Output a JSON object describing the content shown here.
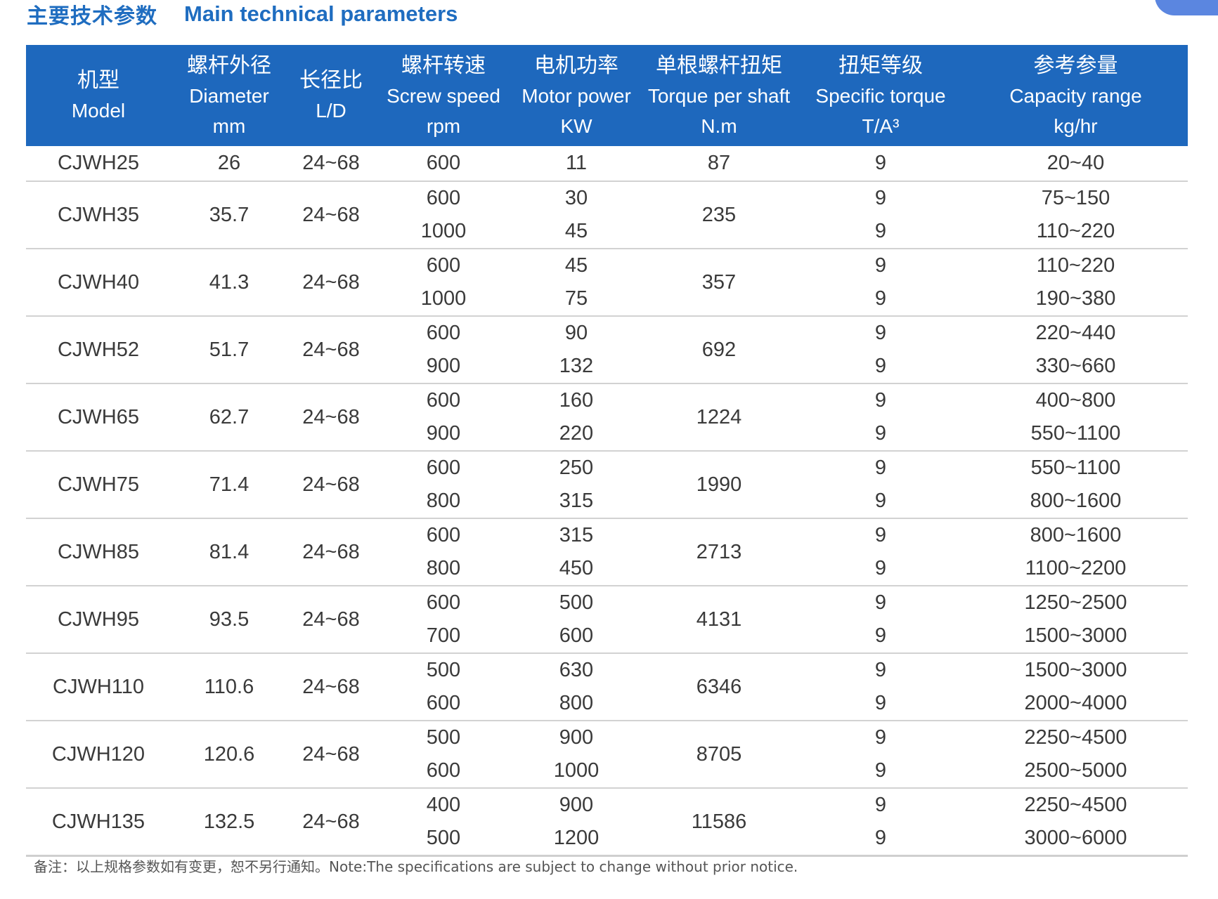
{
  "title": {
    "cn": "主要技术参数",
    "en": "Main technical parameters"
  },
  "columns": [
    {
      "cn": "机型",
      "en": "Model",
      "unit": ""
    },
    {
      "cn": "螺杆外径",
      "en": "Diameter",
      "unit": "mm"
    },
    {
      "cn": "长径比",
      "en": "L/D",
      "unit": ""
    },
    {
      "cn": "螺杆转速",
      "en": "Screw speed",
      "unit": "rpm"
    },
    {
      "cn": "电机功率",
      "en": "Motor power",
      "unit": "KW"
    },
    {
      "cn": "单根螺杆扭矩",
      "en": "Torque per shaft",
      "unit": "N.m"
    },
    {
      "cn": "扭矩等级",
      "en": "Specific torque",
      "unit": "T/A³"
    },
    {
      "cn": "参考参量",
      "en": "Capacity range",
      "unit": "kg/hr"
    }
  ],
  "models": [
    {
      "model": "CJWH25",
      "diameter": "26",
      "ld": "24~68",
      "torque": "87",
      "variants": [
        {
          "speed": "600",
          "power": "11",
          "specific": "9",
          "capacity": "20~40"
        }
      ]
    },
    {
      "model": "CJWH35",
      "diameter": "35.7",
      "ld": "24~68",
      "torque": "235",
      "variants": [
        {
          "speed": "600",
          "power": "30",
          "specific": "9",
          "capacity": "75~150"
        },
        {
          "speed": "1000",
          "power": "45",
          "specific": "9",
          "capacity": "110~220"
        }
      ]
    },
    {
      "model": "CJWH40",
      "diameter": "41.3",
      "ld": "24~68",
      "torque": "357",
      "variants": [
        {
          "speed": "600",
          "power": "45",
          "specific": "9",
          "capacity": "110~220"
        },
        {
          "speed": "1000",
          "power": "75",
          "specific": "9",
          "capacity": "190~380"
        }
      ]
    },
    {
      "model": "CJWH52",
      "diameter": "51.7",
      "ld": "24~68",
      "torque": "692",
      "variants": [
        {
          "speed": "600",
          "power": "90",
          "specific": "9",
          "capacity": "220~440"
        },
        {
          "speed": "900",
          "power": "132",
          "specific": "9",
          "capacity": "330~660"
        }
      ]
    },
    {
      "model": "CJWH65",
      "diameter": "62.7",
      "ld": "24~68",
      "torque": "1224",
      "variants": [
        {
          "speed": "600",
          "power": "160",
          "specific": "9",
          "capacity": "400~800"
        },
        {
          "speed": "900",
          "power": "220",
          "specific": "9",
          "capacity": "550~1100"
        }
      ]
    },
    {
      "model": "CJWH75",
      "diameter": "71.4",
      "ld": "24~68",
      "torque": "1990",
      "variants": [
        {
          "speed": "600",
          "power": "250",
          "specific": "9",
          "capacity": "550~1100"
        },
        {
          "speed": "800",
          "power": "315",
          "specific": "9",
          "capacity": "800~1600"
        }
      ]
    },
    {
      "model": "CJWH85",
      "diameter": "81.4",
      "ld": "24~68",
      "torque": "2713",
      "variants": [
        {
          "speed": "600",
          "power": "315",
          "specific": "9",
          "capacity": "800~1600"
        },
        {
          "speed": "800",
          "power": "450",
          "specific": "9",
          "capacity": "1100~2200"
        }
      ]
    },
    {
      "model": "CJWH95",
      "diameter": "93.5",
      "ld": "24~68",
      "torque": "4131",
      "variants": [
        {
          "speed": "600",
          "power": "500",
          "specific": "9",
          "capacity": "1250~2500"
        },
        {
          "speed": "700",
          "power": "600",
          "specific": "9",
          "capacity": "1500~3000"
        }
      ]
    },
    {
      "model": "CJWH110",
      "diameter": "110.6",
      "ld": "24~68",
      "torque": "6346",
      "variants": [
        {
          "speed": "500",
          "power": "630",
          "specific": "9",
          "capacity": "1500~3000"
        },
        {
          "speed": "600",
          "power": "800",
          "specific": "9",
          "capacity": "2000~4000"
        }
      ]
    },
    {
      "model": "CJWH120",
      "diameter": "120.6",
      "ld": "24~68",
      "torque": "8705",
      "variants": [
        {
          "speed": "500",
          "power": "900",
          "specific": "9",
          "capacity": "2250~4500"
        },
        {
          "speed": "600",
          "power": "1000",
          "specific": "9",
          "capacity": "2500~5000"
        }
      ]
    },
    {
      "model": "CJWH135",
      "diameter": "132.5",
      "ld": "24~68",
      "torque": "11586",
      "variants": [
        {
          "speed": "400",
          "power": "900",
          "specific": "9",
          "capacity": "2250~4500"
        },
        {
          "speed": "500",
          "power": "1200",
          "specific": "9",
          "capacity": "3000~6000"
        }
      ]
    }
  ],
  "note": "备注：以上规格参数如有变更，恕不另行通知。Note:The specifications are subject to change without prior notice.",
  "colors": {
    "header_bg": "#1e68bd",
    "title_blue": "#1f6dc0",
    "row_divider": "#d2d2d2",
    "corner_badge": "#5b86e0"
  }
}
